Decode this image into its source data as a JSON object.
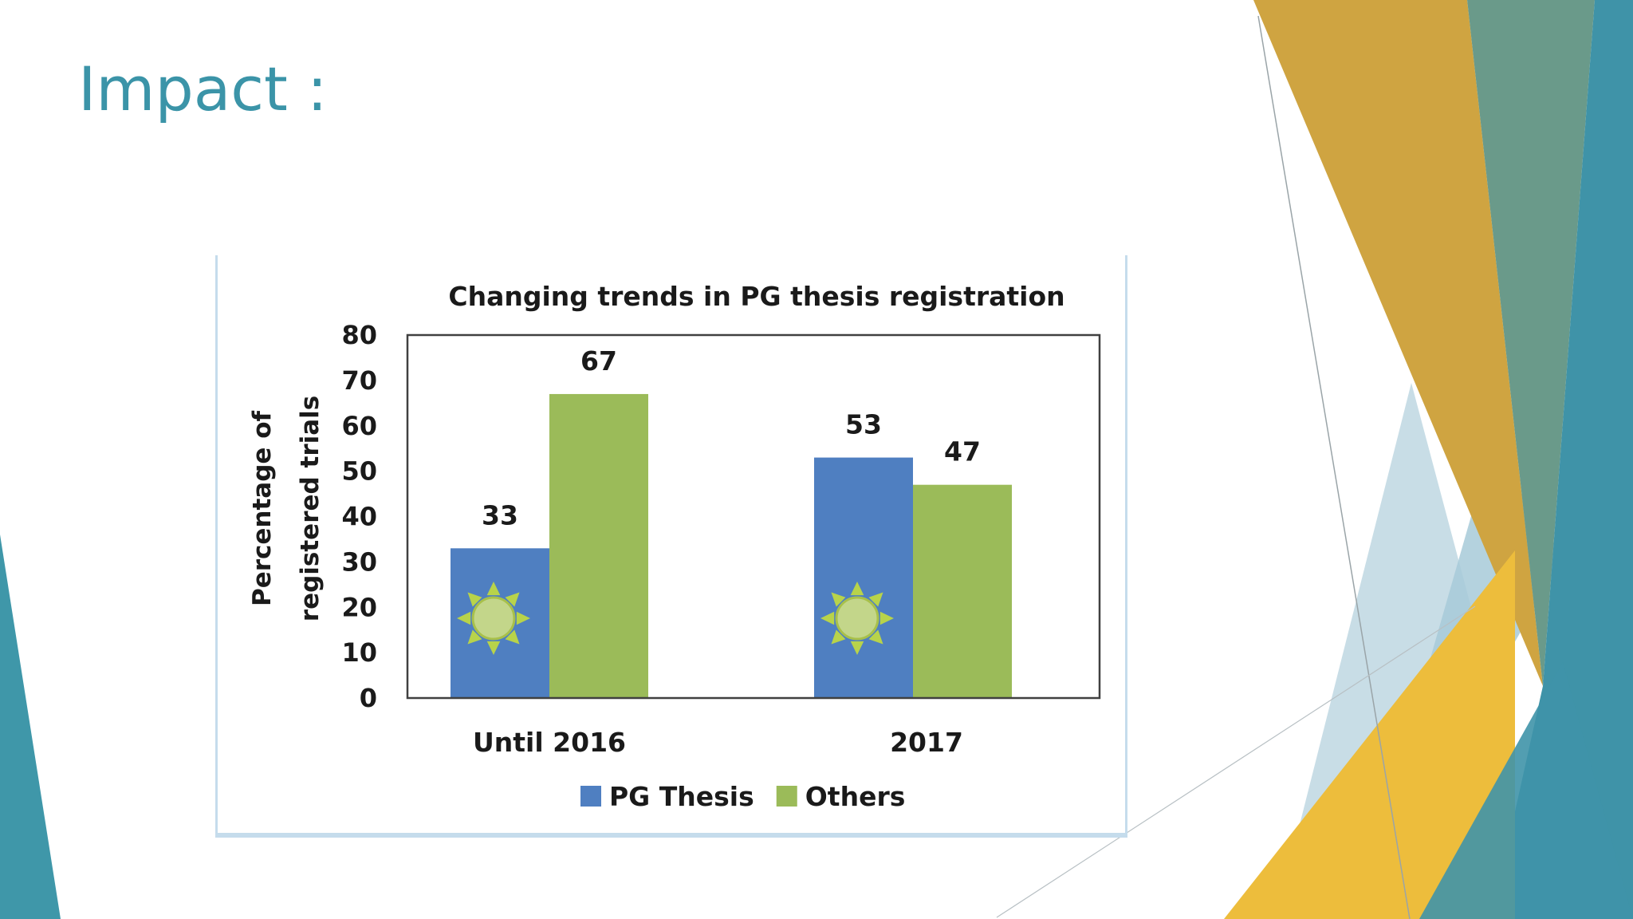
{
  "slide": {
    "title": "Impact :"
  },
  "theme": {
    "accent_teal": "#3b94a8",
    "accent_gold": "#d4a22a",
    "accent_yellow": "#ecbd3a",
    "accent_lightblue": "#a9cbd9"
  },
  "chart_data": {
    "type": "bar",
    "title": "Changing trends in PG thesis registration",
    "ylabel": "Percentage of registered trials",
    "ylabel_lines": [
      "Percentage of",
      "registered trials"
    ],
    "xlabel": "",
    "categories": [
      "Until 2016",
      "2017"
    ],
    "series": [
      {
        "name": "PG Thesis",
        "values": [
          33,
          53
        ],
        "color": "#4f7fc1",
        "icon": "sun-icon"
      },
      {
        "name": "Others",
        "values": [
          67,
          47
        ],
        "color": "#9bbb59"
      }
    ],
    "ylim": [
      0,
      80
    ],
    "yticks": [
      0,
      10,
      20,
      30,
      40,
      50,
      60,
      70,
      80
    ],
    "grid": false,
    "data_labels": true,
    "legend_position": "bottom"
  }
}
